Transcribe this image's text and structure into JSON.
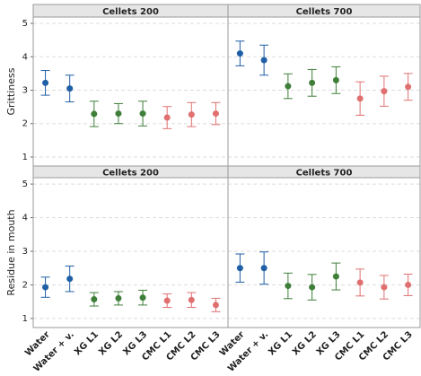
{
  "chart_data": [
    {
      "type": "errorbar",
      "panel_title": "Cellets 200",
      "y_label": "Grittiness",
      "values": [
        3.22,
        3.05,
        2.29,
        2.3,
        2.3,
        2.18,
        2.27,
        2.3
      ],
      "errors": [
        0.37,
        0.4,
        0.38,
        0.3,
        0.37,
        0.33,
        0.36,
        0.33
      ],
      "colors": [
        "#1f5fa6",
        "#1f5fa6",
        "#3f7f3a",
        "#3f7f3a",
        "#3f7f3a",
        "#e07070",
        "#e07070",
        "#e07070"
      ],
      "ylim": [
        0.73,
        5.19
      ],
      "yticks": [
        1,
        2,
        3,
        4,
        5
      ],
      "grid": true
    },
    {
      "type": "errorbar",
      "panel_title": "Cellets 700",
      "values": [
        4.1,
        3.9,
        3.12,
        3.22,
        3.3,
        2.75,
        2.97,
        3.1
      ],
      "errors": [
        0.37,
        0.45,
        0.37,
        0.4,
        0.4,
        0.5,
        0.45,
        0.4
      ],
      "colors": [
        "#1f5fa6",
        "#1f5fa6",
        "#3f7f3a",
        "#3f7f3a",
        "#3f7f3a",
        "#e07070",
        "#e07070",
        "#e07070"
      ],
      "ylim": [
        0.73,
        5.19
      ],
      "grid": true
    },
    {
      "type": "errorbar",
      "panel_title": "Cellets 200",
      "y_label": "Residue in mouth",
      "categories": [
        "Water",
        "Water + v.",
        "XG L1",
        "XG L2",
        "XG L3",
        "CMC L1",
        "CMC L2",
        "CMC L3"
      ],
      "values": [
        1.93,
        2.18,
        1.57,
        1.6,
        1.62,
        1.53,
        1.55,
        1.4
      ],
      "errors": [
        0.3,
        0.38,
        0.2,
        0.2,
        0.22,
        0.2,
        0.22,
        0.2
      ],
      "colors": [
        "#1f5fa6",
        "#1f5fa6",
        "#3f7f3a",
        "#3f7f3a",
        "#3f7f3a",
        "#e07070",
        "#e07070",
        "#e07070"
      ],
      "ylim": [
        0.73,
        5.19
      ],
      "yticks": [
        1,
        2,
        3,
        4,
        5
      ],
      "grid": true
    },
    {
      "type": "errorbar",
      "panel_title": "Cellets 700",
      "categories": [
        "Water",
        "Water + v.",
        "XG L1",
        "XG L2",
        "XG L3",
        "CMC L1",
        "CMC L2",
        "CMC L3"
      ],
      "values": [
        2.5,
        2.5,
        1.97,
        1.93,
        2.25,
        2.07,
        1.93,
        2.0
      ],
      "errors": [
        0.42,
        0.48,
        0.38,
        0.38,
        0.4,
        0.4,
        0.35,
        0.32
      ],
      "colors": [
        "#1f5fa6",
        "#1f5fa6",
        "#3f7f3a",
        "#3f7f3a",
        "#3f7f3a",
        "#e07070",
        "#e07070",
        "#e07070"
      ],
      "ylim": [
        0.73,
        5.19
      ],
      "grid": true
    }
  ]
}
